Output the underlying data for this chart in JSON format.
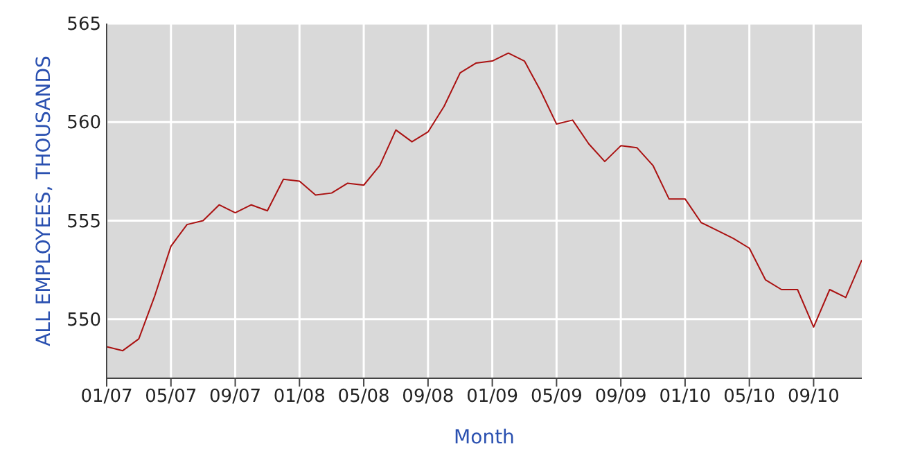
{
  "chart_data": {
    "type": "line",
    "xlabel": "Month",
    "ylabel": "ALL EMPLOYEES, THOUSANDS",
    "x": [
      "2007-01",
      "2007-02",
      "2007-03",
      "2007-04",
      "2007-05",
      "2007-06",
      "2007-07",
      "2007-08",
      "2007-09",
      "2007-10",
      "2007-11",
      "2007-12",
      "2008-01",
      "2008-02",
      "2008-03",
      "2008-04",
      "2008-05",
      "2008-06",
      "2008-07",
      "2008-08",
      "2008-09",
      "2008-10",
      "2008-11",
      "2008-12",
      "2009-01",
      "2009-02",
      "2009-03",
      "2009-04",
      "2009-05",
      "2009-06",
      "2009-07",
      "2009-08",
      "2009-09",
      "2009-10",
      "2009-11",
      "2009-12",
      "2010-01",
      "2010-02",
      "2010-03",
      "2010-04",
      "2010-05",
      "2010-06",
      "2010-07",
      "2010-08",
      "2010-09",
      "2010-10",
      "2010-11",
      "2010-12"
    ],
    "series": [
      {
        "color": "#aa1111",
        "values": [
          548.6,
          548.4,
          549.0,
          551.2,
          553.7,
          554.8,
          555.0,
          555.8,
          555.4,
          555.8,
          555.5,
          557.1,
          557.0,
          556.3,
          556.4,
          556.9,
          556.8,
          557.8,
          559.6,
          559.0,
          559.5,
          560.8,
          562.5,
          563.0,
          563.1,
          563.5,
          563.1,
          561.6,
          559.9,
          560.1,
          558.9,
          558.0,
          558.8,
          558.7,
          557.8,
          556.1,
          556.1,
          554.9,
          554.5,
          554.1,
          553.6,
          552.0,
          551.5,
          551.5,
          549.6,
          551.5,
          551.1,
          553.0
        ]
      }
    ],
    "xlim": [
      "2007-01",
      "2010-12"
    ],
    "xticks": [
      {
        "value": "2007-01",
        "label": "01/07"
      },
      {
        "value": "2007-05",
        "label": "05/07"
      },
      {
        "value": "2007-09",
        "label": "09/07"
      },
      {
        "value": "2008-01",
        "label": "01/08"
      },
      {
        "value": "2008-05",
        "label": "05/08"
      },
      {
        "value": "2008-09",
        "label": "09/08"
      },
      {
        "value": "2009-01",
        "label": "01/09"
      },
      {
        "value": "2009-05",
        "label": "05/09"
      },
      {
        "value": "2009-09",
        "label": "09/09"
      },
      {
        "value": "2010-01",
        "label": "01/10"
      },
      {
        "value": "2010-05",
        "label": "05/10"
      },
      {
        "value": "2010-09",
        "label": "09/10"
      }
    ],
    "ylim": [
      547,
      565
    ],
    "yticks": [
      550,
      555,
      560,
      565
    ],
    "grid": true,
    "legend": false,
    "marker": "none",
    "line_style": "solid"
  }
}
